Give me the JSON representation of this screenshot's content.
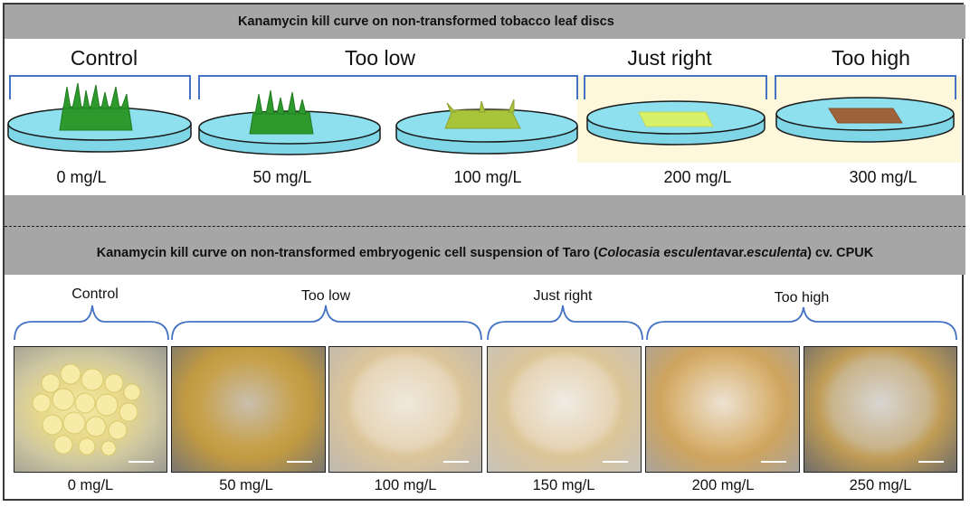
{
  "top_panel": {
    "title": "Kanamycin kill curve on non-transformed tobacco leaf discs",
    "groups": [
      {
        "label": "Control"
      },
      {
        "label": "Too low"
      },
      {
        "label": "Just right"
      },
      {
        "label": "Too high"
      }
    ],
    "doses": [
      "0 mg/L",
      "50 mg/L",
      "100 mg/L",
      "200 mg/L",
      "300 mg/L"
    ]
  },
  "bottom_panel": {
    "title_prefix": "Kanamycin kill curve on non-transformed embryogenic cell suspension of Taro (",
    "title_species": "Colocasia esculenta",
    "title_mid": " var. ",
    "title_variety": "esculenta",
    "title_suffix": ") cv. CPUK",
    "groups": [
      {
        "label": "Control"
      },
      {
        "label": "Too low"
      },
      {
        "label": "Just right"
      },
      {
        "label": "Too high"
      }
    ],
    "doses": [
      "0 mg/L",
      "50 mg/L",
      "100 mg/L",
      "150 mg/L",
      "200 mg/L",
      "250 mg/L"
    ]
  },
  "colors": {
    "title_bar": "#a6a6a6",
    "bracket": "#4472c4",
    "dish_media": "#7fd6e6",
    "leaf_healthy": "#2e9a2e",
    "leaf_yellowing": "#a8c43a",
    "leaf_pale": "#d9f06b",
    "leaf_dead": "#a0623a",
    "highlight_strip": "#fdf8dc"
  }
}
